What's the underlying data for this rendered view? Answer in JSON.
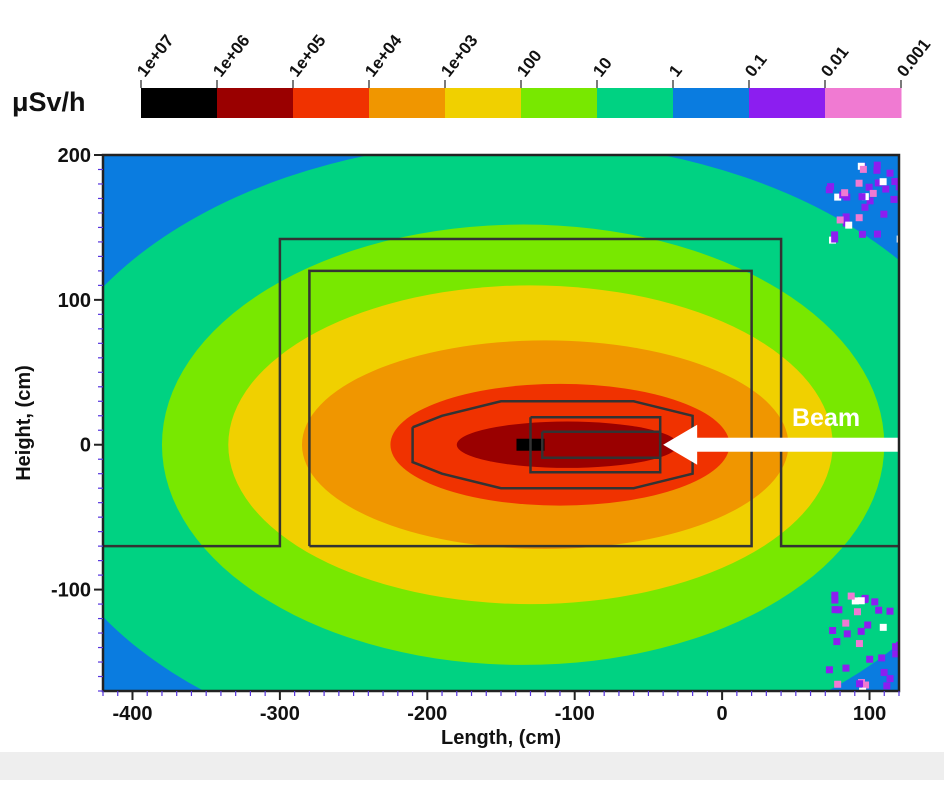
{
  "chart_data": {
    "type": "heatmap",
    "title": "",
    "xlabel": "Length, (cm)",
    "ylabel": "Height, (cm)",
    "xlim": [
      -420,
      120
    ],
    "ylim": [
      -170,
      200
    ],
    "x_ticks": [
      "-400",
      "-300",
      "-200",
      "-100",
      "0",
      "100"
    ],
    "y_ticks": [
      "200",
      "100",
      "0",
      "-100"
    ],
    "grid": false,
    "colorbar": {
      "unit": "μSv/h",
      "tick_labels": [
        "1e+07",
        "1e+06",
        "1e+05",
        "1e+04",
        "1e+03",
        "100",
        "10",
        "1",
        "0.1",
        "0.01",
        "0.001"
      ],
      "bins": [
        {
          "from": "1e+07",
          "to": "1e+06",
          "color": "#000000"
        },
        {
          "from": "1e+06",
          "to": "1e+05",
          "color": "#9a0000"
        },
        {
          "from": "1e+05",
          "to": "1e+04",
          "color": "#f03200"
        },
        {
          "from": "1e+04",
          "to": "1e+03",
          "color": "#f09600"
        },
        {
          "from": "1e+03",
          "to": "100",
          "color": "#f0d000"
        },
        {
          "from": "100",
          "to": "10",
          "color": "#78e800"
        },
        {
          "from": "10",
          "to": "1",
          "color": "#00d282"
        },
        {
          "from": "1",
          "to": "0.1",
          "color": "#0a7ce0"
        },
        {
          "from": "0.1",
          "to": "0.01",
          "color": "#8c1ef0"
        },
        {
          "from": "0.01",
          "to": "0.001",
          "color": "#f07ad2"
        }
      ]
    },
    "source": {
      "x": -130,
      "y": 0
    },
    "dose_zones": [
      {
        "level": "1e+06 to 1e+05",
        "color": "#9a0000",
        "center": [
          -105,
          0
        ],
        "rx": 75,
        "ry": 16
      },
      {
        "level": "1e+05 to 1e+04",
        "color": "#f03200",
        "center": [
          -110,
          0
        ],
        "rx": 115,
        "ry": 42
      },
      {
        "level": "1e+04 to 1e+03",
        "color": "#f09600",
        "center": [
          -120,
          0
        ],
        "rx": 165,
        "ry": 72
      },
      {
        "level": "1e+03 to 100",
        "color": "#f0d000",
        "center": [
          -130,
          0
        ],
        "rx": 205,
        "ry": 110
      },
      {
        "level": "100 to 10",
        "color": "#78e800",
        "center": [
          -135,
          0
        ],
        "rx": 245,
        "ry": 152
      },
      {
        "level": "10 to 1",
        "color": "#00d282",
        "center": [
          -140,
          -5
        ],
        "rx": 330,
        "ry": 215
      }
    ],
    "geometry": [
      {
        "name": "outer-shield-outline",
        "points": [
          [
            -420,
            -70
          ],
          [
            -300,
            -70
          ],
          [
            -300,
            142
          ],
          [
            40,
            142
          ],
          [
            40,
            -70
          ],
          [
            120,
            -70
          ]
        ]
      },
      {
        "name": "inner-room-outline",
        "points": [
          [
            -280,
            -70
          ],
          [
            -280,
            120
          ],
          [
            20,
            120
          ],
          [
            20,
            -70
          ],
          [
            -280,
            -70
          ]
        ]
      },
      {
        "name": "target-housing-outline",
        "points": [
          [
            -210,
            12
          ],
          [
            -190,
            20
          ],
          [
            -150,
            30
          ],
          [
            -60,
            30
          ],
          [
            -20,
            20
          ],
          [
            -20,
            -20
          ],
          [
            -60,
            -30
          ],
          [
            -150,
            -30
          ],
          [
            -190,
            -20
          ],
          [
            -210,
            -12
          ],
          [
            -210,
            12
          ]
        ]
      },
      {
        "name": "beam-pipe-outer",
        "points": [
          [
            -130,
            19
          ],
          [
            -42,
            19
          ],
          [
            -42,
            -19
          ],
          [
            -130,
            -19
          ],
          [
            -130,
            19
          ]
        ]
      },
      {
        "name": "beam-pipe-inner",
        "points": [
          [
            -122,
            9
          ],
          [
            -42,
            9
          ],
          [
            -42,
            -9
          ],
          [
            -122,
            -9
          ],
          [
            -122,
            9
          ]
        ]
      }
    ],
    "annotations": [
      {
        "text": "Beam",
        "arrow_from": [
          120,
          0
        ],
        "arrow_to": [
          -40,
          0
        ]
      }
    ]
  },
  "colors": {
    "frame": "#222222",
    "outline": "#333333",
    "tick": "#5533dd",
    "arrow": "#ffffff",
    "background_zone": "#0a7ce0"
  }
}
